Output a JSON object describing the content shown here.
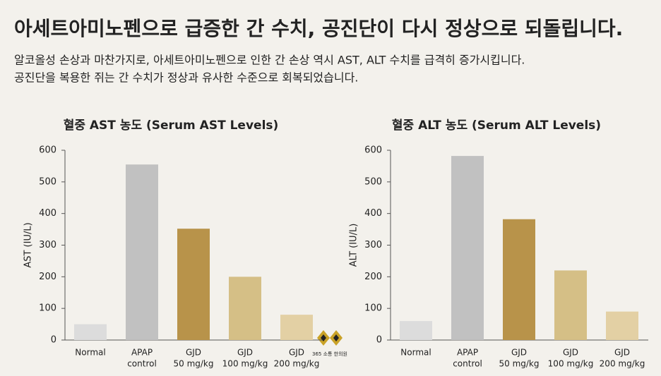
{
  "header": {
    "title": "아세트아미노펜으로 급증한 간 수치, 공진단이 다시 정상으로 되돌립니다.",
    "subtitle": [
      "알코올성 손상과 마찬가지로, 아세트아미노펜으로 인한 간 손상 역시 AST, ALT 수치를 급격히 증가시킵니다.",
      "공진단을 복용한 쥐는 간 수치가 정상과 유사한 수준으로 회복되었습니다."
    ]
  },
  "watermark": "365 소통 한의원",
  "chart_data": [
    {
      "type": "bar",
      "title": "혈중 AST 농도 (Serum AST Levels)",
      "y_label": "AST (IU/L)",
      "categories": [
        [
          "Normal"
        ],
        [
          "APAP",
          "control"
        ],
        [
          "GJD",
          "50 mg/kg"
        ],
        [
          "GJD",
          "100 mg/kg"
        ],
        [
          "GJD",
          "200 mg/kg"
        ]
      ],
      "values": [
        50,
        555,
        352,
        200,
        80
      ],
      "colors": [
        "#dcdcdc",
        "#c1c1c1",
        "#b8934a",
        "#d5bf86",
        "#e3d0a4"
      ],
      "ylim": [
        0,
        600
      ],
      "yticks": [
        0,
        100,
        200,
        300,
        400,
        500,
        600
      ]
    },
    {
      "type": "bar",
      "title": "혈중 ALT 농도 (Serum ALT Levels)",
      "y_label": "ALT (IU/L)",
      "categories": [
        [
          "Normal"
        ],
        [
          "APAP",
          "control"
        ],
        [
          "GJD",
          "50 mg/kg"
        ],
        [
          "GJD",
          "100 mg/kg"
        ],
        [
          "GJD",
          "200 mg/kg"
        ]
      ],
      "values": [
        60,
        582,
        382,
        220,
        90
      ],
      "colors": [
        "#dcdcdc",
        "#c1c1c1",
        "#b8934a",
        "#d5bf86",
        "#e3d0a4"
      ],
      "ylim": [
        0,
        600
      ],
      "yticks": [
        0,
        100,
        200,
        300,
        400,
        500,
        600
      ]
    }
  ]
}
